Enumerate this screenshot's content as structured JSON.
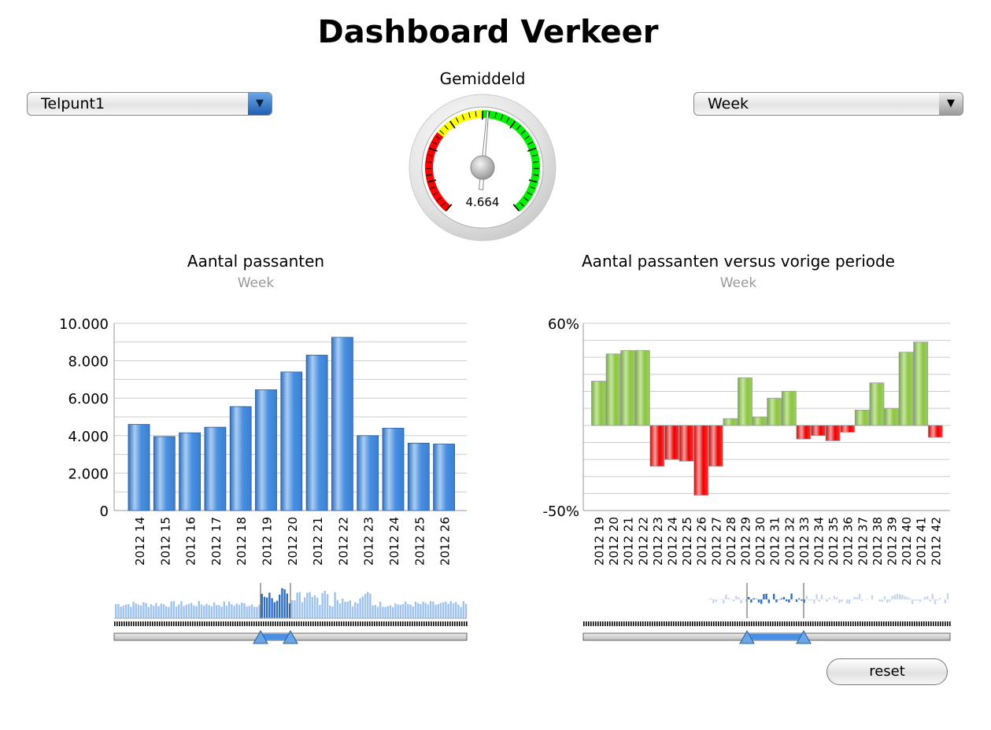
{
  "title": "Dashboard Verkeer",
  "location_select": {
    "value": "Telpunt1"
  },
  "period_select": {
    "value": "Week"
  },
  "gauge": {
    "label": "Gemiddeld",
    "value_text": "4.664",
    "colors": {
      "red": "#ff0000",
      "yellow": "#ffff00",
      "green": "#00ee00"
    }
  },
  "reset_label": "reset",
  "chart_data": [
    {
      "type": "bar",
      "title": "Aantal passanten",
      "subtitle": "Week",
      "color": "#4a90e2",
      "categories": [
        "2012 14",
        "2012 15",
        "2012 16",
        "2012 17",
        "2012 18",
        "2012 19",
        "2012 20",
        "2012 21",
        "2012 22",
        "2012 23",
        "2012 24",
        "2012 25",
        "2012 26"
      ],
      "values": [
        4600,
        3950,
        4150,
        4450,
        5550,
        6450,
        7400,
        8300,
        9250,
        4000,
        4400,
        3600,
        3550
      ],
      "ylim": [
        0,
        10000
      ],
      "yticks": [
        "0",
        "2.000",
        "4.000",
        "6.000",
        "8.000",
        "10.000"
      ],
      "grid": true
    },
    {
      "type": "bar",
      "title": "Aantal passanten versus vorige periode",
      "subtitle": "Week",
      "positive_color": "#8cc63f",
      "negative_color": "#ee0000",
      "categories": [
        "2012 19",
        "2012 20",
        "2012 21",
        "2012 22",
        "2012 23",
        "2012 24",
        "2012 25",
        "2012 26",
        "2012 27",
        "2012 28",
        "2012 29",
        "2012 30",
        "2012 31",
        "2012 32",
        "2012 33",
        "2012 34",
        "2012 35",
        "2012 36",
        "2012 37",
        "2012 38",
        "2012 39",
        "2012 40",
        "2012 41",
        "2012 42"
      ],
      "values": [
        26,
        42,
        44,
        44,
        -24,
        -20,
        -21,
        -41,
        -24,
        4,
        28,
        5,
        16,
        20,
        -8,
        -6,
        -9,
        -4,
        9,
        25,
        10,
        43,
        49,
        -7
      ],
      "ylim": [
        -50,
        60
      ],
      "yticks": [
        "-50%",
        "60%"
      ],
      "grid": true
    }
  ]
}
